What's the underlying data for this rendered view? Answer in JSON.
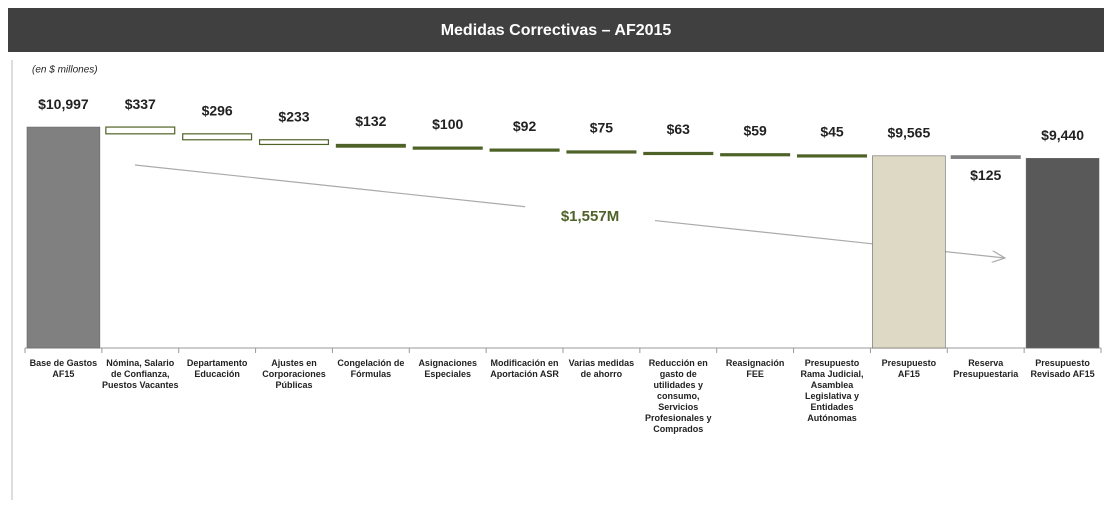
{
  "chart_data": {
    "type": "waterfall",
    "title": "Medidas Correctivas – AF2015",
    "subtitle": "(en $ millones)",
    "categories": [
      "Base de Gastos AF15",
      "Nómina, Salario de Confianza, Puestos Vacantes",
      "Departamento Educación",
      "Ajustes en Corporaciones Públicas",
      "Congelación de Fórmulas",
      "Asignaciones Especiales",
      "Modificación en Aportación ASR",
      "Varias medidas de ahorro",
      "Reducción en gasto de utilidades y consumo, Servicios Profesionales y Comprados",
      "Reasignación FEE",
      "Presupuesto Rama Judicial, Asamblea Legislativa y Entidades Autónomas",
      "Presupuesto AF15",
      "Reserva Presupuestaria",
      "Presupuesto Revisado AF15"
    ],
    "values": [
      10997,
      337,
      296,
      233,
      132,
      100,
      92,
      75,
      63,
      59,
      45,
      9565,
      125,
      9440
    ],
    "value_labels": [
      "$10,997",
      "$337",
      "$296",
      "$233",
      "$132",
      "$100",
      "$92",
      "$75",
      "$63",
      "$59",
      "$45",
      "$9,565",
      "$125",
      "$9,440"
    ],
    "measure": [
      "total",
      "decrease",
      "decrease",
      "decrease",
      "decrease",
      "decrease",
      "decrease",
      "decrease",
      "decrease",
      "decrease",
      "decrease",
      "total",
      "decrease",
      "total"
    ],
    "colors": [
      "#808080",
      "#4f6228",
      "#4f6228",
      "#4f6228",
      "#4f6228",
      "#4f6228",
      "#4f6228",
      "#4f6228",
      "#4f6228",
      "#4f6228",
      "#4f6228",
      "#ddd9c4",
      "#808080",
      "#595959"
    ],
    "annotation": "$1,557M",
    "ylim": [
      0,
      11000
    ]
  }
}
